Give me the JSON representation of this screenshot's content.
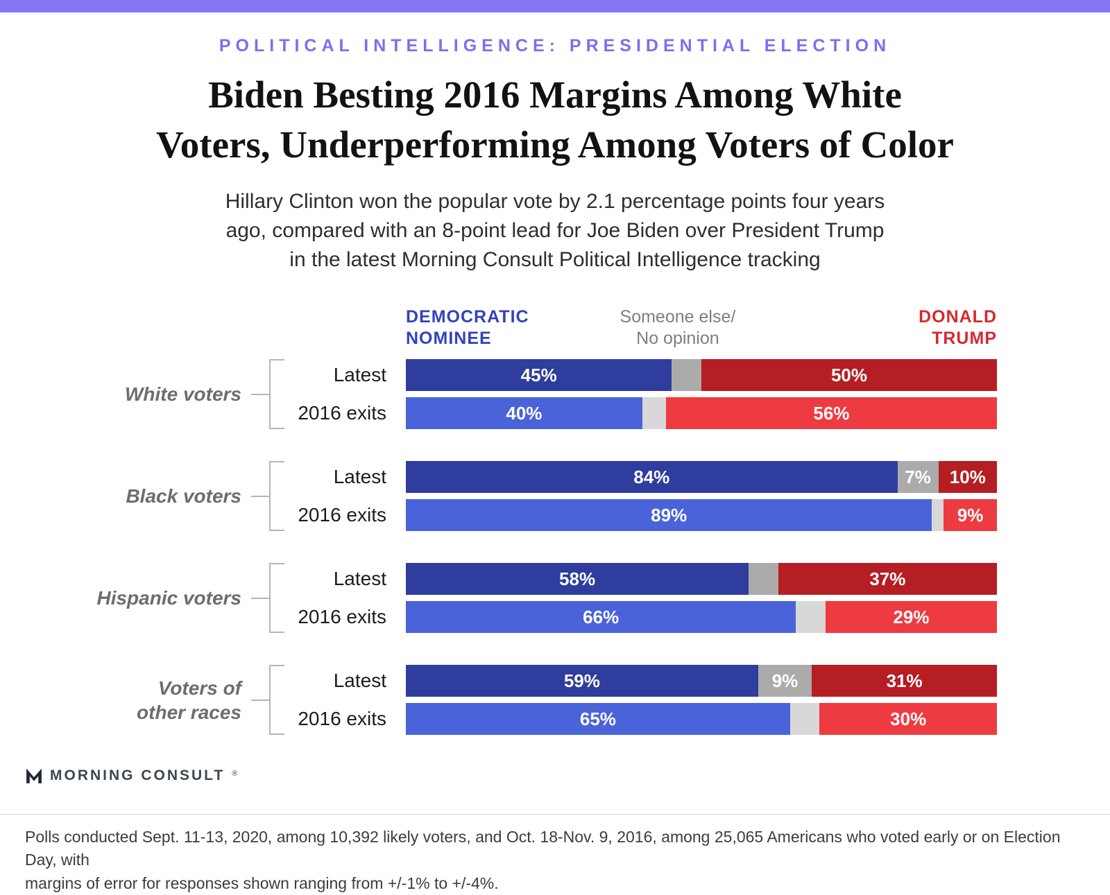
{
  "header": {
    "eyebrow": "POLITICAL INTELLIGENCE: PRESIDENTIAL ELECTION",
    "title": "Biden Besting 2016 Margins Among White\nVoters, Underperforming Among Voters of Color",
    "subtitle": "Hillary Clinton won the popular vote by 2.1 percentage points four years\nago, compared with an 8-point lead for Joe Biden over President Trump\nin the latest Morning Consult Political Intelligence tracking"
  },
  "legend": {
    "dem": "DEMOCRATIC\nNOMINEE",
    "other": "Someone else/\nNo opinion",
    "trump": "DONALD\nTRUMP"
  },
  "colors": {
    "accent_purple": "#8577f3",
    "eyebrow_purple": "#7b6ff0",
    "legend_dem": "#3142bd",
    "legend_other": "#7f7f7f",
    "legend_trump": "#d7282f",
    "dem_latest": "#2e3d9e",
    "dem_exits": "#4a63d9",
    "other_latest": "#ababab",
    "other_exits": "#d8d8d8",
    "trump_latest": "#b51e23",
    "trump_exits": "#ee3a41"
  },
  "chart_data": {
    "type": "bar",
    "orientation": "horizontal-stacked",
    "title": "Biden Besting 2016 Margins Among White Voters, Underperforming Among Voters of Color",
    "series_names": [
      "Democratic nominee",
      "Someone else/No opinion",
      "Donald Trump"
    ],
    "xlim": [
      0,
      100
    ],
    "grid": false,
    "legend_position": "top",
    "groups": [
      {
        "label": "White voters",
        "rows": [
          {
            "label": "Latest",
            "variant": "latest",
            "segments": [
              {
                "key": "dem",
                "value": 45,
                "label": "45%"
              },
              {
                "key": "other",
                "value": 5,
                "label": ""
              },
              {
                "key": "trump",
                "value": 50,
                "label": "50%"
              }
            ]
          },
          {
            "label": "2016 exits",
            "variant": "exits",
            "segments": [
              {
                "key": "dem",
                "value": 40,
                "label": "40%"
              },
              {
                "key": "other",
                "value": 4,
                "label": ""
              },
              {
                "key": "trump",
                "value": 56,
                "label": "56%"
              }
            ]
          }
        ]
      },
      {
        "label": "Black voters",
        "rows": [
          {
            "label": "Latest",
            "variant": "latest",
            "segments": [
              {
                "key": "dem",
                "value": 84,
                "label": "84%"
              },
              {
                "key": "other",
                "value": 7,
                "label": "7%"
              },
              {
                "key": "trump",
                "value": 10,
                "label": "10%"
              }
            ]
          },
          {
            "label": "2016 exits",
            "variant": "exits",
            "segments": [
              {
                "key": "dem",
                "value": 89,
                "label": "89%"
              },
              {
                "key": "other",
                "value": 2,
                "label": ""
              },
              {
                "key": "trump",
                "value": 9,
                "label": "9%"
              }
            ]
          }
        ]
      },
      {
        "label": "Hispanic voters",
        "rows": [
          {
            "label": "Latest",
            "variant": "latest",
            "segments": [
              {
                "key": "dem",
                "value": 58,
                "label": "58%"
              },
              {
                "key": "other",
                "value": 5,
                "label": ""
              },
              {
                "key": "trump",
                "value": 37,
                "label": "37%"
              }
            ]
          },
          {
            "label": "2016 exits",
            "variant": "exits",
            "segments": [
              {
                "key": "dem",
                "value": 66,
                "label": "66%"
              },
              {
                "key": "other",
                "value": 5,
                "label": ""
              },
              {
                "key": "trump",
                "value": 29,
                "label": "29%"
              }
            ]
          }
        ]
      },
      {
        "label": "Voters of\nother races",
        "rows": [
          {
            "label": "Latest",
            "variant": "latest",
            "segments": [
              {
                "key": "dem",
                "value": 59,
                "label": "59%"
              },
              {
                "key": "other",
                "value": 9,
                "label": "9%"
              },
              {
                "key": "trump",
                "value": 31,
                "label": "31%"
              }
            ]
          },
          {
            "label": "2016 exits",
            "variant": "exits",
            "segments": [
              {
                "key": "dem",
                "value": 65,
                "label": "65%"
              },
              {
                "key": "other",
                "value": 5,
                "label": ""
              },
              {
                "key": "trump",
                "value": 30,
                "label": "30%"
              }
            ]
          }
        ]
      }
    ]
  },
  "footer": {
    "brand": "MORNING CONSULT",
    "registered": "®",
    "note": "Polls conducted Sept. 11-13, 2020, among 10,392 likely voters, and Oct. 18-Nov. 9, 2016, among 25,065 Americans who voted early or on Election Day, with\nmargins of error for responses shown ranging from +/-1% to +/-4%."
  }
}
